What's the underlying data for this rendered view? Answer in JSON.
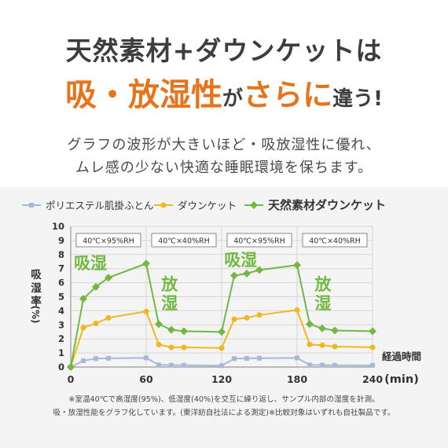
{
  "header": {
    "line1": "天然素材+ダウンケットは",
    "line2_part1": "吸・放湿性",
    "line2_part2": "が",
    "line2_part3": "さらに",
    "line2_part4": "違う!"
  },
  "description": {
    "line1": "グラフの波形が大きいほど・吸放湿性に優れ、",
    "line2": "ムレ感の少ない快適な睡眠環境を保ちます。"
  },
  "chart_data": {
    "type": "line",
    "ylabel_chars": [
      "吸",
      "湿",
      "率",
      "(%)"
    ],
    "xlabel": "経過時間",
    "xunit": "(min)",
    "xticks": [
      0,
      60,
      120,
      180,
      240
    ],
    "yticks": [
      0,
      1,
      2,
      3,
      4,
      5,
      6,
      7,
      8,
      9,
      10
    ],
    "xlim": [
      0,
      240
    ],
    "ylim": [
      0,
      10
    ],
    "grid": true,
    "legend_position": "top",
    "series": [
      {
        "name": "ポリエステル肌掛ふとん",
        "color": "#a8b8d8",
        "marker": "square",
        "points": [
          [
            0,
            0
          ],
          [
            10,
            0.45
          ],
          [
            20,
            0.6
          ],
          [
            30,
            0.62
          ],
          [
            60,
            0.65
          ],
          [
            70,
            0.15
          ],
          [
            80,
            0.14
          ],
          [
            90,
            0.13
          ],
          [
            120,
            0.1
          ],
          [
            130,
            0.6
          ],
          [
            140,
            0.62
          ],
          [
            150,
            0.63
          ],
          [
            180,
            0.65
          ],
          [
            190,
            0.15
          ],
          [
            200,
            0.14
          ],
          [
            210,
            0.13
          ],
          [
            240,
            0.12
          ]
        ]
      },
      {
        "name": "ダウンケット",
        "color": "#f2b620",
        "marker": "circle",
        "points": [
          [
            0,
            0
          ],
          [
            10,
            2.8
          ],
          [
            20,
            3.1
          ],
          [
            30,
            3.5
          ],
          [
            60,
            3.95
          ],
          [
            70,
            1.6
          ],
          [
            80,
            1.4
          ],
          [
            90,
            1.4
          ],
          [
            120,
            1.35
          ],
          [
            130,
            3.4
          ],
          [
            140,
            3.5
          ],
          [
            150,
            3.7
          ],
          [
            180,
            4.05
          ],
          [
            190,
            1.6
          ],
          [
            200,
            1.55
          ],
          [
            210,
            1.45
          ],
          [
            240,
            1.4
          ]
        ]
      },
      {
        "name": "天然素材ダウンケット",
        "color": "#72b843",
        "marker": "diamond",
        "points": [
          [
            0,
            0
          ],
          [
            10,
            4.85
          ],
          [
            20,
            5.7
          ],
          [
            30,
            6.35
          ],
          [
            60,
            7.35
          ],
          [
            70,
            3.05
          ],
          [
            80,
            2.65
          ],
          [
            90,
            2.55
          ],
          [
            120,
            2.5
          ],
          [
            130,
            6.5
          ],
          [
            140,
            6.65
          ],
          [
            150,
            6.9
          ],
          [
            180,
            7.25
          ],
          [
            190,
            3.05
          ],
          [
            200,
            2.75
          ],
          [
            210,
            2.6
          ],
          [
            240,
            2.55
          ]
        ]
      }
    ],
    "condition_boxes": [
      {
        "label": "40℃×95%RH",
        "from": 0,
        "to": 60
      },
      {
        "label": "40℃×40%RH",
        "from": 60,
        "to": 120
      },
      {
        "label": "40℃×95%RH",
        "from": 120,
        "to": 180
      },
      {
        "label": "40℃×40%RH",
        "from": 180,
        "to": 240
      }
    ],
    "annotations": [
      {
        "text": "吸湿",
        "vertical": false
      },
      {
        "text": "放湿",
        "vertical": true
      },
      {
        "text": "吸湿",
        "vertical": false
      },
      {
        "text": "放湿",
        "vertical": true
      }
    ],
    "annotation_color": "#72b843"
  },
  "notes": {
    "line1": "※室温40℃で高湿度(95%)、低湿度(40%)を交互に繰り返し、サンプル内部の湿度を計測。",
    "line2": "吸・放湿性能をグラフ化しています。(東洋紡自社法による測定)※比較対象はいずれも自社製品です。"
  }
}
